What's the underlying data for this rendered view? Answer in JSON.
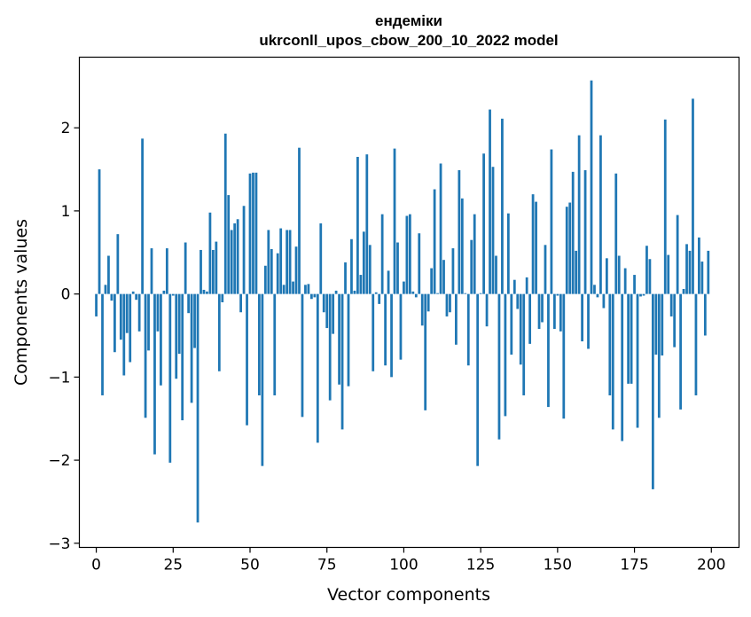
{
  "chart_data": {
    "type": "bar",
    "title_line1": "ендеміки",
    "title_line2": "ukrconll_upos_cbow_200_10_2022 model",
    "xlabel": "Vector components",
    "ylabel": "Components values",
    "xlim": [
      -5.5,
      209
    ],
    "ylim": [
      -3.05,
      2.85
    ],
    "xticks": [
      0,
      25,
      50,
      75,
      100,
      125,
      150,
      175,
      200
    ],
    "xtick_labels": [
      "0",
      "25",
      "50",
      "75",
      "100",
      "125",
      "150",
      "175",
      "200"
    ],
    "yticks": [
      -3,
      -2,
      -1,
      0,
      1,
      2
    ],
    "ytick_labels": [
      "−3",
      "−2",
      "−1",
      "0",
      "1",
      "2"
    ],
    "grid": false,
    "bar_color": "#1f77b4",
    "values": [
      -0.27,
      1.5,
      -1.22,
      0.11,
      0.46,
      -0.08,
      -0.7,
      0.72,
      -0.55,
      -0.98,
      -0.47,
      -0.82,
      0.03,
      -0.07,
      -0.45,
      1.87,
      -1.49,
      -0.68,
      0.55,
      -1.93,
      -0.45,
      -1.1,
      0.04,
      0.55,
      -2.03,
      -0.02,
      -1.02,
      -0.72,
      -1.52,
      0.62,
      -0.23,
      -1.31,
      -0.65,
      -2.75,
      0.53,
      0.05,
      0.03,
      0.98,
      0.53,
      0.63,
      -0.93,
      -0.1,
      1.93,
      1.19,
      0.77,
      0.85,
      0.9,
      -0.22,
      1.06,
      -1.58,
      1.45,
      1.46,
      1.46,
      -1.22,
      -2.07,
      0.34,
      0.77,
      0.54,
      -1.22,
      0.49,
      0.79,
      0.11,
      0.77,
      0.77,
      0.15,
      0.57,
      1.76,
      -1.48,
      0.11,
      0.12,
      -0.06,
      -0.04,
      -1.79,
      0.85,
      -0.22,
      -0.41,
      -1.28,
      -0.48,
      0.04,
      -1.09,
      -1.63,
      0.38,
      -1.11,
      0.66,
      0.04,
      1.65,
      0.23,
      0.75,
      1.68,
      0.59,
      -0.93,
      0.02,
      -0.12,
      0.96,
      -0.86,
      0.28,
      -1.0,
      1.75,
      0.62,
      -0.79,
      0.15,
      0.94,
      0.96,
      0.03,
      -0.04,
      0.73,
      -0.38,
      -1.4,
      -0.21,
      0.31,
      1.26,
      0.01,
      1.57,
      0.41,
      -0.27,
      -0.22,
      0.55,
      -0.61,
      1.49,
      1.15,
      0.01,
      -0.86,
      0.65,
      0.96,
      -2.07,
      0.01,
      1.69,
      -0.39,
      2.22,
      1.53,
      0.46,
      -1.75,
      2.11,
      -1.47,
      0.97,
      -0.73,
      0.17,
      -0.18,
      -0.85,
      -1.22,
      0.2,
      -0.6,
      1.2,
      1.11,
      -0.42,
      -0.34,
      0.59,
      -1.36,
      1.74,
      -0.42,
      -0.02,
      -0.45,
      -1.5,
      1.05,
      1.1,
      1.47,
      0.52,
      1.91,
      -0.57,
      1.49,
      -0.66,
      2.57,
      0.11,
      -0.04,
      1.91,
      -0.17,
      0.43,
      -1.22,
      -1.63,
      1.45,
      0.46,
      -1.77,
      0.31,
      -1.08,
      -1.08,
      0.23,
      -1.61,
      -0.03,
      -0.02,
      0.58,
      0.42,
      -2.35,
      -0.73,
      -1.49,
      -0.74,
      2.1,
      0.47,
      -0.27,
      -0.64,
      0.95,
      -1.39,
      0.06,
      0.6,
      0.52,
      2.35,
      -1.22,
      0.68,
      0.39,
      -0.5,
      0.52
    ]
  }
}
